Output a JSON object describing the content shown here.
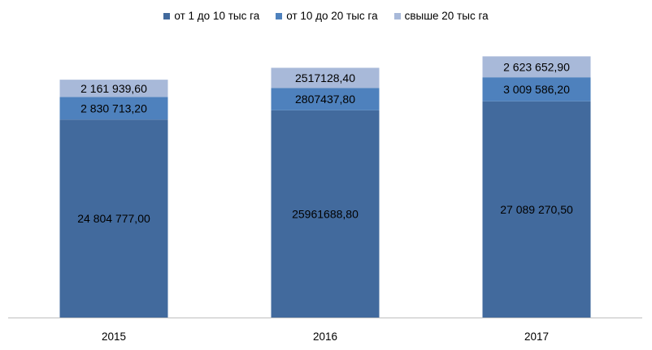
{
  "chart_data": {
    "type": "bar",
    "stacked": true,
    "categories": [
      "2015",
      "2016",
      "2017"
    ],
    "series": [
      {
        "name": "от 1 до 10 тыс га",
        "color": "#426a9d",
        "values": [
          24804777.0,
          25961688.8,
          27089270.5
        ],
        "labels": [
          "24 804 777,00",
          "25961688,80",
          "27 089 270,50"
        ]
      },
      {
        "name": "от 10 до 20 тыс га",
        "color": "#4e81bd",
        "values": [
          2830713.2,
          2807437.8,
          3009586.2
        ],
        "labels": [
          "2 830 713,20",
          "2807437,80",
          "3 009 586,20"
        ]
      },
      {
        "name": "свыше  20 тыс га",
        "color": "#a8b9d9",
        "values": [
          2161939.6,
          2517128.4,
          2623652.9
        ],
        "labels": [
          "2 161 939,60",
          "2517128,40",
          "2 623 652,90"
        ]
      }
    ],
    "title": "",
    "xlabel": "",
    "ylabel": "",
    "ylim": [
      0,
      35000000
    ],
    "grid": false,
    "legend": "top"
  }
}
